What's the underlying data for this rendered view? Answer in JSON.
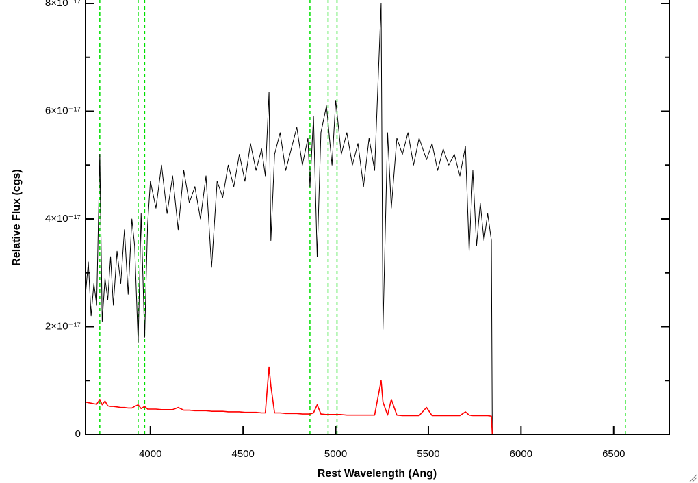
{
  "chart_data": {
    "type": "line",
    "xlabel": "Rest Wavelength (Ang)",
    "ylabel": "Relative Flux (cgs)",
    "xlim": [
      3650,
      6800
    ],
    "ylim": [
      0,
      8e-17
    ],
    "xticks": [
      4000,
      4500,
      5000,
      5500,
      6000,
      6500
    ],
    "yticks": [
      0,
      {
        "value": 2e-17,
        "label": "2×10⁻¹⁷"
      },
      {
        "value": 4e-17,
        "label": "4×10⁻¹⁷"
      },
      {
        "value": 6e-17,
        "label": "6×10⁻¹⁷"
      },
      {
        "value": 8e-17,
        "label": "8×10⁻¹⁷"
      }
    ],
    "yminorticks": [
      1e-17,
      3e-17,
      5e-17,
      7e-17
    ],
    "vlines": [
      3727,
      3934,
      3969,
      4861,
      4959,
      5007,
      6563
    ],
    "vline_color": "#00e000",
    "x": [
      3650,
      3665,
      3680,
      3695,
      3710,
      3727,
      3740,
      3755,
      3770,
      3785,
      3800,
      3820,
      3840,
      3860,
      3880,
      3900,
      3915,
      3934,
      3950,
      3969,
      3985,
      4000,
      4030,
      4060,
      4090,
      4120,
      4150,
      4180,
      4210,
      4240,
      4270,
      4300,
      4330,
      4360,
      4390,
      4420,
      4450,
      4480,
      4510,
      4540,
      4570,
      4600,
      4620,
      4640,
      4650,
      4670,
      4700,
      4730,
      4760,
      4790,
      4820,
      4850,
      4861,
      4880,
      4900,
      4920,
      4950,
      4980,
      5000,
      5030,
      5060,
      5090,
      5120,
      5150,
      5180,
      5210,
      5245,
      5255,
      5280,
      5300,
      5330,
      5360,
      5390,
      5420,
      5450,
      5490,
      5520,
      5550,
      5580,
      5610,
      5640,
      5670,
      5700,
      5720,
      5740,
      5760,
      5780,
      5800,
      5820,
      5840,
      5845,
      6000,
      6800
    ],
    "series": [
      {
        "color": "#000000",
        "values": [
          2.6e-17,
          3.2e-17,
          2.2e-17,
          2.8e-17,
          2.4e-17,
          5.2e-17,
          2.1e-17,
          2.9e-17,
          2.5e-17,
          3.3e-17,
          2.4e-17,
          3.4e-17,
          2.8e-17,
          3.8e-17,
          2.6e-17,
          4e-17,
          3.5e-17,
          1.7e-17,
          4.1e-17,
          1.8e-17,
          3.9e-17,
          4.7e-17,
          4.2e-17,
          5e-17,
          4.1e-17,
          4.8e-17,
          3.8e-17,
          4.9e-17,
          4.3e-17,
          4.6e-17,
          4e-17,
          4.8e-17,
          3.1e-17,
          4.7e-17,
          4.4e-17,
          5e-17,
          4.6e-17,
          5.2e-17,
          4.7e-17,
          5.4e-17,
          4.9e-17,
          5.3e-17,
          4.8e-17,
          6.35e-17,
          3.6e-17,
          5.2e-17,
          5.6e-17,
          4.9e-17,
          5.3e-17,
          5.7e-17,
          5e-17,
          5.5e-17,
          4.6e-17,
          5.9e-17,
          3.3e-17,
          5.6e-17,
          6.1e-17,
          5e-17,
          6.2e-17,
          5.2e-17,
          5.6e-17,
          5e-17,
          5.4e-17,
          4.6e-17,
          5.5e-17,
          4.9e-17,
          8e-17,
          1.95e-17,
          5.6e-17,
          4.2e-17,
          5.5e-17,
          5.2e-17,
          5.6e-17,
          5e-17,
          5.5e-17,
          5.1e-17,
          5.4e-17,
          4.9e-17,
          5.3e-17,
          5e-17,
          5.2e-17,
          4.8e-17,
          5.35e-17,
          3.4e-17,
          4.9e-17,
          3.5e-17,
          4.3e-17,
          3.6e-17,
          4.1e-17,
          3.6e-17,
          0,
          0,
          0
        ]
      },
      {
        "color": "#ff0000",
        "values": [
          6e-18,
          5.9e-18,
          5.8e-18,
          5.7e-18,
          5.6e-18,
          6.5e-18,
          5.5e-18,
          6.2e-18,
          5.3e-18,
          5.2e-18,
          5.2e-18,
          5.1e-18,
          5e-18,
          5e-18,
          4.9e-18,
          4.9e-18,
          5.2e-18,
          5.5e-18,
          4.8e-18,
          5.2e-18,
          4.7e-18,
          4.7e-18,
          4.7e-18,
          4.6e-18,
          4.6e-18,
          4.6e-18,
          5e-18,
          4.5e-18,
          4.5e-18,
          4.4e-18,
          4.4e-18,
          4.4e-18,
          4.3e-18,
          4.3e-18,
          4.3e-18,
          4.2e-18,
          4.2e-18,
          4.2e-18,
          4.1e-18,
          4.1e-18,
          4.1e-18,
          4e-18,
          4e-18,
          1.25e-17,
          9e-18,
          4e-18,
          4e-18,
          3.9e-18,
          3.9e-18,
          3.9e-18,
          3.8e-18,
          3.8e-18,
          3.8e-18,
          4e-18,
          5.5e-18,
          3.8e-18,
          3.7e-18,
          3.7e-18,
          3.7e-18,
          3.7e-18,
          3.6e-18,
          3.6e-18,
          3.6e-18,
          3.6e-18,
          3.6e-18,
          3.6e-18,
          1e-17,
          6e-18,
          3.6e-18,
          6.5e-18,
          3.6e-18,
          3.5e-18,
          3.5e-18,
          3.5e-18,
          3.5e-18,
          5e-18,
          3.5e-18,
          3.5e-18,
          3.5e-18,
          3.5e-18,
          3.5e-18,
          3.5e-18,
          4.2e-18,
          3.6e-18,
          3.5e-18,
          3.5e-18,
          3.5e-18,
          3.5e-18,
          3.5e-18,
          3.4e-18,
          0,
          0,
          0
        ]
      }
    ]
  }
}
